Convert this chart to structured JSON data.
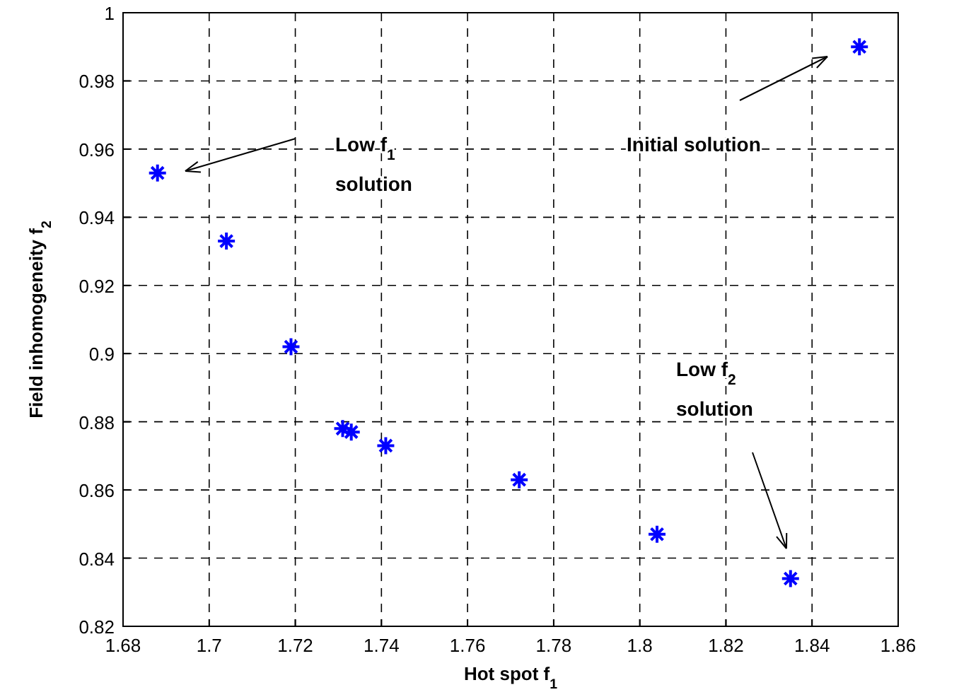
{
  "chart_data": {
    "type": "scatter",
    "xlabel": "Hot spot f$_{1}$",
    "ylabel": "Field inhomogeneity f$_{2}$",
    "x": [
      1.688,
      1.704,
      1.719,
      1.731,
      1.733,
      1.741,
      1.772,
      1.804,
      1.835,
      1.851
    ],
    "series": [
      {
        "color": "#0000ff",
        "values": [
          0.953,
          0.933,
          0.902,
          0.878,
          0.877,
          0.873,
          0.863,
          0.847,
          0.834,
          0.99
        ]
      }
    ],
    "xlim": [
      1.68,
      1.86
    ],
    "xticks": [
      1.68,
      1.7,
      1.72,
      1.74,
      1.76,
      1.78,
      1.8,
      1.82,
      1.84,
      1.86
    ],
    "ylim": [
      0.82,
      1
    ],
    "yticks": [
      0.82,
      0.84,
      0.86,
      0.88,
      0.9,
      0.92,
      0.94,
      0.96,
      0.98,
      1
    ],
    "grid": true,
    "marker": "cross",
    "annotations": [
      "Low f$_{1}$ solution",
      "Initial solution",
      "Low f$_{2}$ solution"
    ]
  }
}
